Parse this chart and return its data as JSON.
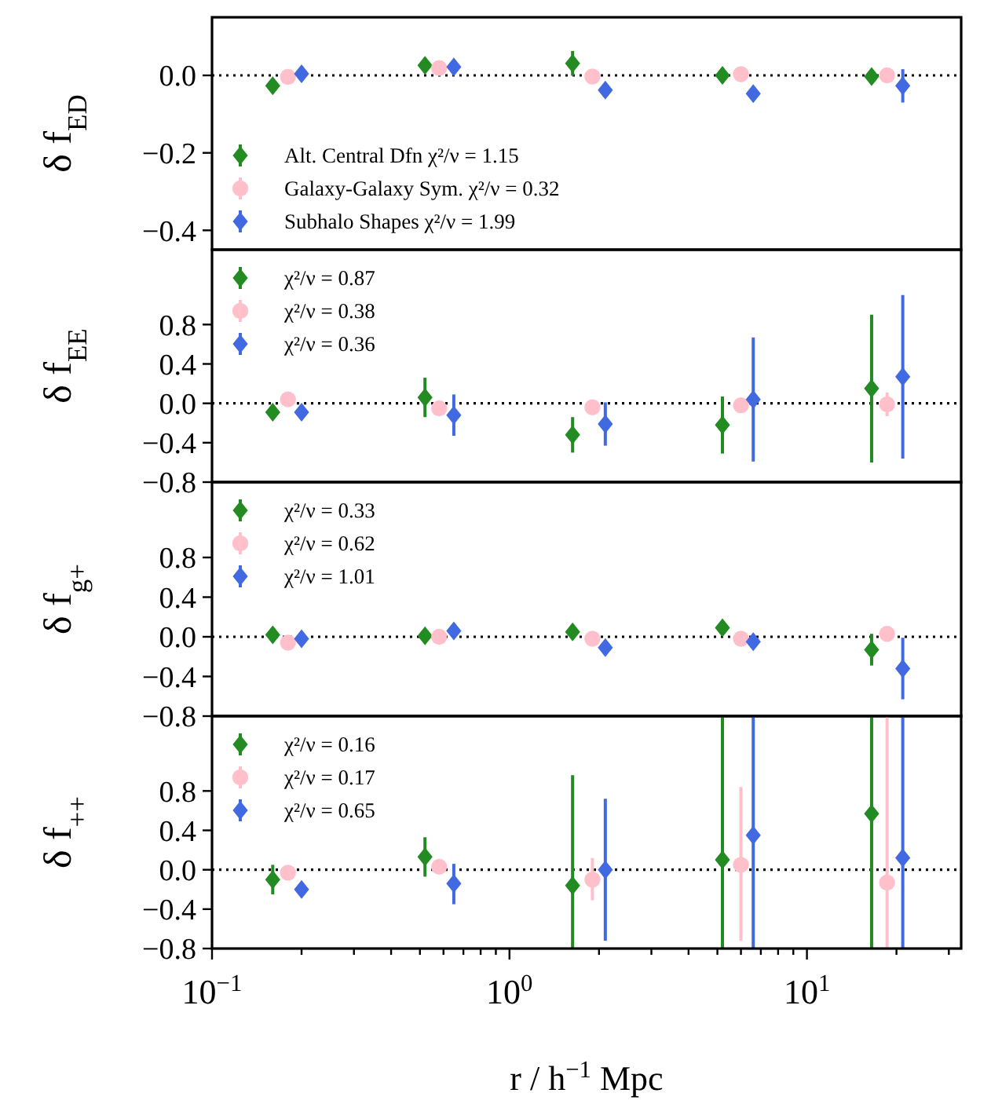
{
  "chart_data": [
    {
      "type": "scatter",
      "ylabel": "δ f$_{ED}$",
      "xlim": [
        0.1,
        33
      ],
      "ylim": [
        -0.45,
        0.15
      ],
      "yticks": [
        {
          "value": 0,
          "label": "0.0"
        },
        {
          "value": -0.2,
          "label": "−0.2"
        },
        {
          "value": -0.4,
          "label": "−0.4"
        }
      ],
      "tick_labels": "y",
      "legend": "bottom left",
      "log": "x",
      "ref_lines": [
        {
          "axis": "y",
          "value": 0,
          "line_style": "dotted",
          "color": "#000000"
        }
      ],
      "series": [
        {
          "name": "Alt. Central Dfn χ²/ν = 1.15",
          "color": "#228b22",
          "marker": "diamond",
          "x": [
            0.16,
            0.52,
            1.63,
            5.2,
            16.5
          ],
          "values": [
            -0.027,
            0.026,
            0.031,
            0,
            -0.003
          ],
          "errors": [
            null,
            null,
            0.032,
            0.02,
            null
          ]
        },
        {
          "name": "Galaxy-Galaxy Sym. χ²/ν = 0.32",
          "color": "#ffc0cb",
          "marker": "circle",
          "x": [
            0.18,
            0.58,
            1.9,
            6.0,
            18.6
          ],
          "values": [
            -0.004,
            0.019,
            -0.003,
            0.003,
            0
          ],
          "errors": [
            null,
            null,
            null,
            null,
            null
          ]
        },
        {
          "name": "Subhalo Shapes χ²/ν = 1.99",
          "color": "#4169e1",
          "marker": "diamond",
          "x": [
            0.2,
            0.65,
            2.1,
            6.6,
            21
          ],
          "values": [
            0.004,
            0.022,
            -0.038,
            -0.047,
            -0.027
          ],
          "errors": [
            null,
            null,
            null,
            null,
            0.043
          ]
        }
      ]
    },
    {
      "type": "scatter",
      "ylabel": "δ f$_{EE}$",
      "xlim": [
        0.1,
        33
      ],
      "ylim": [
        -0.8,
        1.56
      ],
      "yticks": [
        {
          "value": -0.8,
          "label": "−0.8"
        },
        {
          "value": -0.4,
          "label": "−0.4"
        },
        {
          "value": 0,
          "label": "0.0"
        },
        {
          "value": 0.4,
          "label": "0.4"
        },
        {
          "value": 0.8,
          "label": "0.8"
        }
      ],
      "tick_labels": "y",
      "legend": "top left",
      "log": "x",
      "ref_lines": [
        {
          "axis": "y",
          "value": 0,
          "line_style": "dotted",
          "color": "#000000"
        }
      ],
      "series": [
        {
          "name": "χ²/ν = 0.87",
          "color": "#228b22",
          "marker": "diamond",
          "x": [
            0.16,
            0.52,
            1.63,
            5.2,
            16.5
          ],
          "values": [
            -0.09,
            0.06,
            -0.32,
            -0.22,
            0.15
          ],
          "errors": [
            null,
            0.2,
            0.18,
            0.29,
            0.75
          ]
        },
        {
          "name": "χ²/ν = 0.38",
          "color": "#ffc0cb",
          "marker": "circle",
          "x": [
            0.18,
            0.58,
            1.9,
            6.0,
            18.6
          ],
          "values": [
            0.04,
            -0.05,
            -0.04,
            -0.02,
            -0.01
          ],
          "errors": [
            null,
            null,
            null,
            null,
            0.12
          ]
        },
        {
          "name": "χ²/ν = 0.36",
          "color": "#4169e1",
          "marker": "diamond",
          "x": [
            0.2,
            0.65,
            2.1,
            6.6,
            21
          ],
          "values": [
            -0.09,
            -0.12,
            -0.21,
            0.04,
            0.27
          ],
          "errors": [
            null,
            0.21,
            0.22,
            0.63,
            0.83
          ]
        }
      ]
    },
    {
      "type": "scatter",
      "ylabel": "δ f$_{g+}$",
      "xlim": [
        0.1,
        33
      ],
      "ylim": [
        -0.8,
        1.56
      ],
      "yticks": [
        {
          "value": -0.8,
          "label": "−0.8"
        },
        {
          "value": -0.4,
          "label": "−0.4"
        },
        {
          "value": 0,
          "label": "0.0"
        },
        {
          "value": 0.4,
          "label": "0.4"
        },
        {
          "value": 0.8,
          "label": "0.8"
        }
      ],
      "tick_labels": "y",
      "legend": "top left",
      "log": "x",
      "ref_lines": [
        {
          "axis": "y",
          "value": 0,
          "line_style": "dotted",
          "color": "#000000"
        }
      ],
      "series": [
        {
          "name": "χ²/ν = 0.33",
          "color": "#228b22",
          "marker": "diamond",
          "x": [
            0.16,
            0.52,
            1.63,
            5.2,
            16.5
          ],
          "values": [
            0.02,
            0.01,
            0.05,
            0.09,
            -0.13
          ],
          "errors": [
            null,
            null,
            null,
            null,
            0.16
          ]
        },
        {
          "name": "χ²/ν = 0.62",
          "color": "#ffc0cb",
          "marker": "circle",
          "x": [
            0.18,
            0.58,
            1.9,
            6.0,
            18.6
          ],
          "values": [
            -0.06,
            0,
            -0.02,
            -0.02,
            0.03
          ],
          "errors": [
            null,
            null,
            null,
            null,
            null
          ]
        },
        {
          "name": "χ²/ν = 1.01",
          "color": "#4169e1",
          "marker": "diamond",
          "x": [
            0.2,
            0.65,
            2.1,
            6.6,
            21
          ],
          "values": [
            -0.02,
            0.06,
            -0.11,
            -0.05,
            -0.32
          ],
          "errors": [
            null,
            null,
            null,
            null,
            0.31
          ]
        }
      ]
    },
    {
      "type": "scatter",
      "ylabel": "δ f$_{++}$",
      "xlabel": "r / h$^{−1}$ Mpc",
      "xlim": [
        0.1,
        33
      ],
      "ylim": [
        -0.8,
        1.56
      ],
      "xticks": [
        {
          "value": 0.1,
          "label": "10$^{−1}$"
        },
        {
          "value": 0.2,
          "label": null
        },
        {
          "value": 0.3,
          "label": null
        },
        {
          "value": 0.4,
          "label": null
        },
        {
          "value": 0.5,
          "label": null
        },
        {
          "value": 0.6,
          "label": null
        },
        {
          "value": 0.7,
          "label": null
        },
        {
          "value": 0.8,
          "label": null
        },
        {
          "value": 0.9,
          "label": null
        },
        {
          "value": 1,
          "label": "10$^{0}$"
        },
        {
          "value": 2,
          "label": null
        },
        {
          "value": 3,
          "label": null
        },
        {
          "value": 4,
          "label": null
        },
        {
          "value": 5,
          "label": null
        },
        {
          "value": 6,
          "label": null
        },
        {
          "value": 7,
          "label": null
        },
        {
          "value": 8,
          "label": null
        },
        {
          "value": 9,
          "label": null
        },
        {
          "value": 10,
          "label": "10$^{1}$"
        },
        {
          "value": 20,
          "label": null
        },
        {
          "value": 30,
          "label": null
        }
      ],
      "yticks": [
        {
          "value": -0.8,
          "label": "−0.8"
        },
        {
          "value": -0.4,
          "label": "−0.4"
        },
        {
          "value": 0,
          "label": "0.0"
        },
        {
          "value": 0.4,
          "label": "0.4"
        },
        {
          "value": 0.8,
          "label": "0.8"
        }
      ],
      "legend": "top left",
      "log": "x",
      "ref_lines": [
        {
          "axis": "y",
          "value": 0,
          "line_style": "dotted",
          "color": "#000000"
        }
      ],
      "series": [
        {
          "name": "χ²/ν = 0.16",
          "color": "#228b22",
          "marker": "diamond",
          "x": [
            0.16,
            0.52,
            1.63,
            5.2,
            16.5
          ],
          "values": [
            -0.1,
            0.13,
            -0.16,
            0.1,
            0.57
          ],
          "errors": [
            0.15,
            0.2,
            [
              -0.8,
              0.96
            ],
            [
              -0.8,
              1.56
            ],
            [
              -0.8,
              1.56
            ]
          ]
        },
        {
          "name": "χ²/ν = 0.17",
          "color": "#ffc0cb",
          "marker": "circle",
          "x": [
            0.18,
            0.58,
            1.9,
            6.0,
            18.6
          ],
          "values": [
            -0.03,
            0.03,
            -0.1,
            0.05,
            -0.13
          ],
          "errors": [
            null,
            null,
            [
              -0.31,
              0.12
            ],
            [
              -0.72,
              0.84
            ],
            [
              -0.8,
              1.56
            ]
          ]
        },
        {
          "name": "χ²/ν = 0.65",
          "color": "#4169e1",
          "marker": "diamond",
          "x": [
            0.2,
            0.65,
            2.1,
            6.6,
            21
          ],
          "values": [
            -0.2,
            -0.14,
            0,
            0.35,
            0.12
          ],
          "errors": [
            null,
            [
              -0.35,
              0.06
            ],
            0.72,
            [
              -0.8,
              1.56
            ],
            [
              -0.8,
              1.56
            ]
          ]
        }
      ]
    }
  ]
}
